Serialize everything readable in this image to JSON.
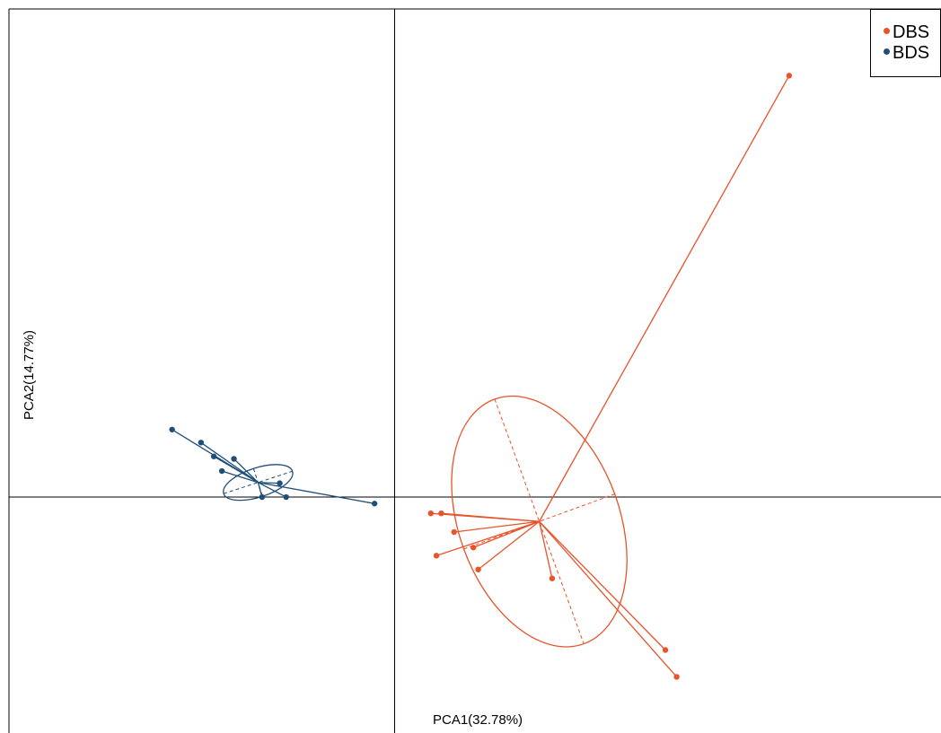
{
  "chart_data": {
    "type": "scatter",
    "xlabel": "PCA1(32.78%)",
    "ylabel": "PCA2(14.77%)",
    "xlim": [
      -0.48,
      0.68
    ],
    "ylim": [
      -0.29,
      0.6
    ],
    "axes_origin": [
      0,
      0
    ],
    "frame": "left-top",
    "grid": false,
    "legend": "top-right",
    "series": [
      {
        "name": "DBS",
        "color": "#e8532a",
        "centroid": [
          0.18,
          -0.03
        ],
        "points": [
          [
            0.045,
            -0.02
          ],
          [
            0.058,
            -0.02
          ],
          [
            0.074,
            -0.043
          ],
          [
            0.098,
            -0.062
          ],
          [
            0.052,
            -0.072
          ],
          [
            0.104,
            -0.089
          ],
          [
            0.196,
            -0.1
          ],
          [
            0.337,
            -0.188
          ],
          [
            0.351,
            -0.221
          ],
          [
            0.491,
            0.518
          ]
        ],
        "ellipse": {
          "rx": 0.1,
          "ry": 0.16,
          "rotation_deg": 20
        }
      },
      {
        "name": "BDS",
        "color": "#1f4e79",
        "centroid": [
          -0.17,
          0.018
        ],
        "points": [
          [
            -0.277,
            0.083
          ],
          [
            -0.241,
            0.067
          ],
          [
            -0.225,
            0.05
          ],
          [
            -0.2,
            0.047
          ],
          [
            -0.215,
            0.032
          ],
          [
            -0.143,
            0.017
          ],
          [
            -0.165,
            0.0
          ],
          [
            -0.135,
            0.0
          ],
          [
            -0.025,
            -0.008
          ]
        ],
        "ellipse": {
          "rx": 0.045,
          "ry": 0.018,
          "rotation_deg": 18
        }
      }
    ]
  }
}
